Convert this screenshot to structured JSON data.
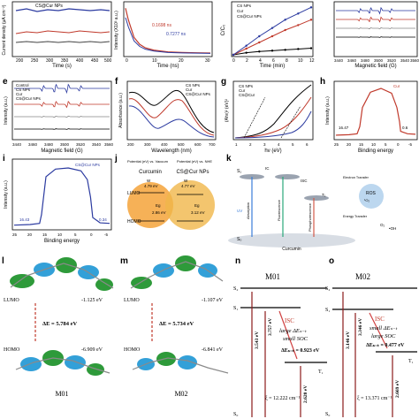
{
  "panels": {
    "a": {
      "letter": "",
      "xlabel": "Time (s)",
      "ylabel": "Current density (μA cm⁻²)",
      "legend": [
        "CS@Cur NPs"
      ],
      "xticks": [
        "200",
        "250",
        "300",
        "350",
        "400",
        "450",
        "500"
      ]
    },
    "b": {
      "letter": "",
      "xlabel": "Time (ns)",
      "ylabel": "Intensity (X10³ a.u.)",
      "annotations": [
        "0.1698 ns",
        "0.7277 ns"
      ],
      "xticks": [
        "0",
        "10",
        "20",
        "30"
      ]
    },
    "c": {
      "letter": "",
      "xlabel": "Time (min)",
      "ylabel": "C/C₀",
      "legend": [
        "CS NPs",
        "Cur",
        "CS@Cur NPs"
      ],
      "xticks": [
        "0",
        "2",
        "4",
        "6",
        "8",
        "10",
        "12"
      ]
    },
    "d": {
      "letter": "",
      "xlabel": "Magnetic field (G)",
      "xticks": [
        "3440",
        "3460",
        "3480",
        "3500",
        "3520",
        "3540",
        "3560"
      ]
    },
    "e": {
      "letter": "e",
      "xlabel": "Magnetic field (G)",
      "ylabel": "Intensity (a.u.)",
      "legend": [
        "Control",
        "CS NPs",
        "Cur",
        "CS@Cur NPs"
      ],
      "xticks": [
        "3440",
        "3460",
        "3480",
        "3500",
        "3520",
        "3540",
        "3560"
      ]
    },
    "f": {
      "letter": "f",
      "xlabel": "Wavelength (nm)",
      "ylabel": "Absorbance (a.u.)",
      "legend": [
        "CS NPs",
        "Cur",
        "CS@Cur NPs"
      ],
      "xticks": [
        "200",
        "300",
        "400",
        "500",
        "600",
        "700"
      ]
    },
    "g": {
      "letter": "g",
      "xlabel": "hν (eV)",
      "ylabel": "(Ahν)² (eV)²",
      "legend": [
        "CS NPs",
        "Cur",
        "CS@Cur"
      ],
      "xticks": [
        "1",
        "2",
        "3",
        "4",
        "5",
        "6"
      ]
    },
    "h": {
      "letter": "h",
      "xlabel": "Binding energy",
      "ylabel": "Intensity (a.u.)",
      "legend": [
        "Cur"
      ],
      "annotations": [
        "16.47",
        "0.6"
      ],
      "xticks": [
        "25",
        "20",
        "15",
        "10",
        "5",
        "0",
        "-5"
      ]
    },
    "i": {
      "letter": "i",
      "xlabel": "Binding energy",
      "ylabel": "Intensity (a.u.)",
      "legend": [
        "CS@Cur NPs"
      ],
      "annotations": [
        "16.43",
        "0.34"
      ],
      "xticks": [
        "25",
        "20",
        "15",
        "10",
        "5",
        "0",
        "-5"
      ]
    },
    "j": {
      "letter": "j",
      "header_left": "Potential (eV) vs. Vacuum",
      "header_right": "Potential (eV) vs. NHE",
      "labels": [
        "Curcumin",
        "CS@Cur NPs",
        "LUMO",
        "HOMO",
        "W",
        "4.79 eV",
        "4.77 eV",
        "Eg",
        "2.86 eV",
        "3.12 eV"
      ]
    },
    "k": {
      "letter": "k",
      "labels": [
        "S₁",
        "S₀",
        "IC",
        "ISC",
        "T₁",
        "Absorption",
        "Fluorescence",
        "Phosphorescence",
        "Electron Transfer",
        "Energy Transfer",
        "UV",
        "ROS",
        "¹O₂",
        "•OH",
        "O₂",
        "Curcumin"
      ]
    },
    "l": {
      "letter": "l",
      "lumo_label": "LUMO",
      "homo_label": "HOMO",
      "lumo_energy": "-1.125 eV",
      "homo_energy": "-6.909 eV",
      "gap": "ΔE = 5.784 eV",
      "molecule": "M01"
    },
    "m": {
      "letter": "m",
      "lumo_label": "LUMO",
      "homo_label": "HOMO",
      "lumo_energy": "-1.107 eV",
      "homo_energy": "-6.841 eV",
      "gap": "ΔE = 5.734 eV",
      "molecule": "M02"
    },
    "n": {
      "letter": "n",
      "title": "M01",
      "s2": "S₂",
      "s1": "S₁",
      "s0": "S₀",
      "t1": "T₁",
      "isc": "ISC",
      "note1": "large ΔEₛ₋ₜ",
      "note2": "small SOC",
      "dest": "ΔEₛ₋ₜ = 0.923 eV",
      "e1": "3.543 eV",
      "e2": "3.757 eV",
      "e3": "2.620 eV",
      "xi": "ξ = 12.222 cm⁻¹"
    },
    "o": {
      "letter": "o",
      "title": "M02",
      "s2": "S₂",
      "s1": "S₁",
      "s0": "S₀",
      "t1": "T₁",
      "isc": "ISC",
      "note1": "small ΔEₛ₋ₜ",
      "note2": "large SOC",
      "dest": "ΔEₛ₋ₜ = 0.477 eV",
      "e1": "3.146 eV",
      "e2": "3.346 eV",
      "e3": "2.669 eV",
      "xi": "ξ = 13.371 cm⁻¹"
    }
  },
  "chart_data": [
    {
      "type": "line",
      "panel": "b",
      "x": [
        0,
        1,
        2,
        3,
        5,
        7,
        10,
        15,
        20,
        25,
        30
      ],
      "y": [
        8,
        6,
        4.5,
        3,
        1.8,
        1.2,
        0.8,
        0.5,
        0.4,
        0.35,
        0.3
      ],
      "xlim": [
        0,
        30
      ]
    },
    {
      "type": "line",
      "panel": "c",
      "x": [
        0,
        2,
        4,
        6,
        8,
        10,
        12
      ],
      "series": [
        {
          "name": "CS NPs",
          "values": [
            0,
            0.05,
            0.08,
            0.1,
            0.12,
            0.14,
            0.16
          ]
        },
        {
          "name": "Cur",
          "values": [
            0,
            0.15,
            0.3,
            0.45,
            0.6,
            0.72,
            0.85
          ]
        },
        {
          "name": "CS@Cur NPs",
          "values": [
            0,
            0.22,
            0.45,
            0.65,
            0.85,
            1.0,
            1.15
          ]
        }
      ]
    },
    {
      "type": "line",
      "panel": "h",
      "x": [
        25,
        20,
        17,
        16,
        15,
        12,
        8,
        4,
        2,
        1,
        0.6,
        -2,
        -5
      ],
      "y": [
        0.02,
        0.03,
        0.05,
        0.2,
        0.6,
        0.92,
        1.0,
        0.9,
        0.6,
        0.3,
        0.1,
        0.05,
        0.04
      ]
    },
    {
      "type": "line",
      "panel": "i",
      "x": [
        25,
        20,
        17,
        16.4,
        15,
        12,
        8,
        4,
        2,
        1,
        0.3,
        -2,
        -5
      ],
      "y": [
        0.02,
        0.03,
        0.05,
        0.2,
        0.85,
        0.98,
        1.0,
        0.95,
        0.8,
        0.5,
        0.15,
        0.06,
        0.05
      ]
    }
  ]
}
